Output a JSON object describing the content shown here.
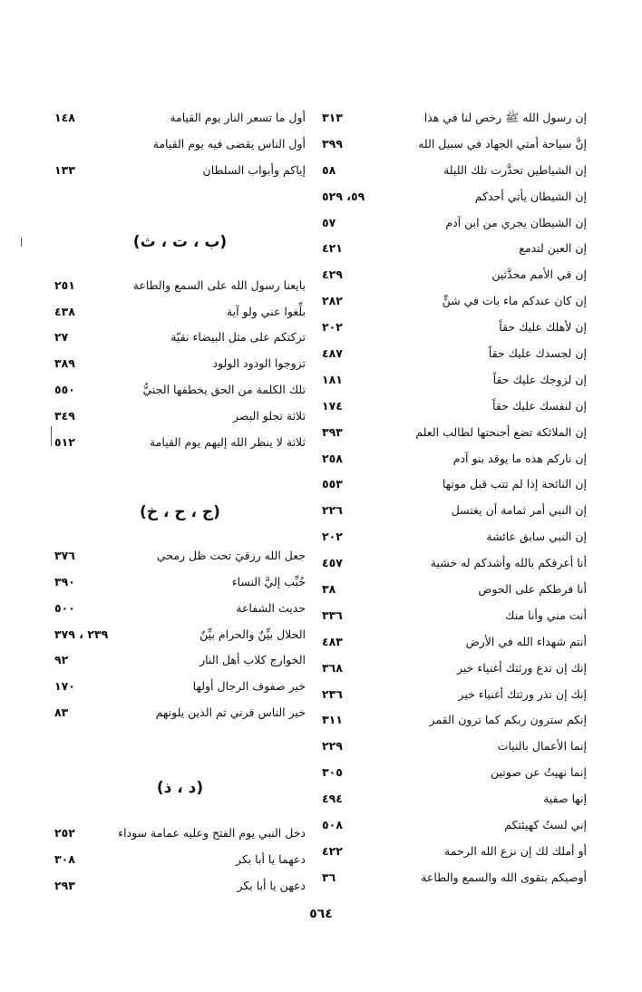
{
  "right_column": [
    {
      "text": "إن رسول الله ﷺ رخص لنا في هذا",
      "pages": "٣١٣"
    },
    {
      "text": "إنَّ سياحة أمتي الجهاد في سبيل الله",
      "pages": "٣٩٩"
    },
    {
      "text": "إن الشياطين تحدَّرت تلك الليلة",
      "pages": "٥٨"
    },
    {
      "text": "إن الشيطان يأتي أحدكم",
      "pages": "٥٩، ٥٢٩"
    },
    {
      "text": "إن الشيطان يجري من ابن آدم",
      "pages": "٥٧"
    },
    {
      "text": "إن العين لتدمع",
      "pages": "٤٢١"
    },
    {
      "text": "إن في الأمم محدَّثين",
      "pages": "٤٢٩"
    },
    {
      "text": "إن كان عندكم ماء بات في شنٍّ",
      "pages": "٢٨٢"
    },
    {
      "text": "إن لأهلك عليك حقاً",
      "pages": "٢٠٢"
    },
    {
      "text": "إن لجسدك عليك حقاً",
      "pages": "٤٨٧"
    },
    {
      "text": "إن لزوجك عليك حقاً",
      "pages": "١٨١"
    },
    {
      "text": "إن لنفسك عليك حقاً",
      "pages": "١٧٤"
    },
    {
      "text": "إن الملائكة تضع أجنحتها لطالب العلم",
      "pages": "٣٩٣"
    },
    {
      "text": "إن ناركم هذه ما يوقد بنو آدم",
      "pages": "٢٥٨"
    },
    {
      "text": "إن النائحة إذا لم تتب قبل موتها",
      "pages": "٥٥٣"
    },
    {
      "text": "إن النبي أمر ثمامة أن يغتسل",
      "pages": "٢٢٦"
    },
    {
      "text": "إن النبي سابق عائشة",
      "pages": "٢٠٢"
    },
    {
      "text": "أنا أعرفكم بالله وأشدكم له خشية",
      "pages": "٤٥٧"
    },
    {
      "text": "أنا فرطكم على الحوض",
      "pages": "٣٨"
    },
    {
      "text": "أنت مني وأنا منك",
      "pages": "٣٣٦"
    },
    {
      "text": "أنتم شهداء الله في الأرض",
      "pages": "٤٨٣"
    },
    {
      "text": "إنك إن تدع ورثتك أغنياء خير",
      "pages": "٣٦٨"
    },
    {
      "text": "إنك إن تذر ورثتك أغنياء خير",
      "pages": "٢٣٦"
    },
    {
      "text": "إنكم سترون ربكم كما ترون القمر",
      "pages": "٣١١"
    },
    {
      "text": "إنما الأعمال بالنيات",
      "pages": "٢٢٩"
    },
    {
      "text": "إنما نهيتُ عن صوتين",
      "pages": "٣٠٥"
    },
    {
      "text": "إنها صفية",
      "pages": "٤٩٤"
    },
    {
      "text": "إني لستُ كهيئتكم",
      "pages": "٥٠٨"
    },
    {
      "text": "أو أملك لك إن نزع الله الرحمة",
      "pages": "٤٢٢"
    },
    {
      "text": "أوصيكم بتقوى الله والسمع والطاعة",
      "pages": "٣٦"
    }
  ],
  "left_column": [
    {
      "heading": "",
      "entries": [
        {
          "text": "أول ما تسعر النار يوم القيامة",
          "pages": "١٤٨"
        },
        {
          "text": "أول الناس يقضى فيه يوم القيامة",
          "pages": ""
        },
        {
          "text": "إياكم وأبواب السلطان",
          "pages": "١٣٣"
        }
      ]
    },
    {
      "heading": "(ب ، ت ، ث)",
      "entries": [
        {
          "text": "بايعنا رسول الله على السمع والطاعة",
          "pages": "٢٥١"
        },
        {
          "text": "بلِّغوا عني ولو آية",
          "pages": "٤٣٨"
        },
        {
          "text": "تركتكم على مثل البيضاء نقيّة",
          "pages": "٢٧"
        },
        {
          "text": "تزوجوا الودود الولود",
          "pages": "٣٨٩"
        },
        {
          "text": "تلك الكلمة من الحق يخطفها الجنيُّ",
          "pages": "٥٥٠"
        },
        {
          "text": "ثلاثة تجلو البصر",
          "pages": "٣٤٩"
        },
        {
          "text": "ثلاثة لا ينظر الله إليهم يوم القيامة",
          "pages": "٥١٢"
        }
      ]
    },
    {
      "heading": "(ج ، ح ، خ)",
      "entries": [
        {
          "text": "جعل الله رزقيَ تحت ظل رمحي",
          "pages": "٣٧٦"
        },
        {
          "text": "حُبِّب إليَّ النساء",
          "pages": "٣٩٠"
        },
        {
          "text": "حديث الشفاعة",
          "pages": "٥٠٠"
        },
        {
          "text": "الحلال بيِّنٌ والحرام بيِّنٌ",
          "pages": "٢٣٩ ، ٣٧٩"
        },
        {
          "text": "الخوارج كلاب أهل النار",
          "pages": "٩٢"
        },
        {
          "text": "خير صفوف الرجال أولها",
          "pages": "١٧٠"
        },
        {
          "text": "خير الناس قرني ثم الذين يلونهم",
          "pages": "٨٣"
        }
      ]
    },
    {
      "heading": "(د ، ذ)",
      "entries": [
        {
          "text": "دخل النبي يوم الفتح وعليه عمامة سوداء",
          "pages": "٢٥٢"
        },
        {
          "text": "دعهما يا أبا بكر",
          "pages": "٣٠٨"
        },
        {
          "text": "دعهن يا أبا بكر",
          "pages": "٢٩٣"
        }
      ]
    }
  ],
  "page_number": "٥٦٤"
}
